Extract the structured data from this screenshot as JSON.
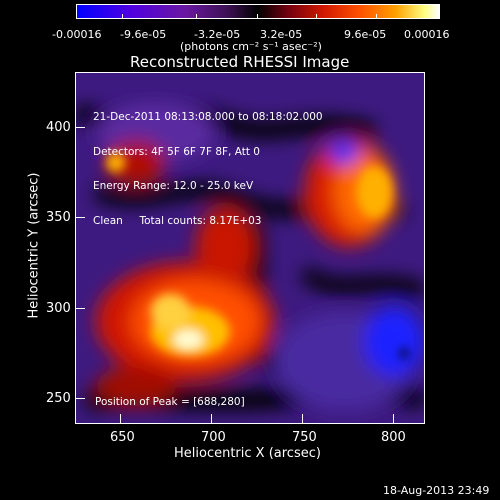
{
  "colorbar": {
    "tick_labels": [
      "-0.00016",
      "-9.6e-05",
      "-3.2e-05",
      "3.2e-05",
      "9.6e-05",
      "0.00016"
    ],
    "unit_label": "(photons cm⁻² s⁻¹ asec⁻²)"
  },
  "title": "Reconstructed RHESSI Image",
  "info": {
    "line1": "21-Dec-2011 08:13:08.000 to 08:18:02.000",
    "line2": "Detectors: 4F 5F 6F 7F 8F, Att 0",
    "line3": "Energy Range: 12.0 - 25.0 keV",
    "line4": "Clean     Total counts: 8.17E+03",
    "peak": "Position of Peak = [688,280]"
  },
  "axes": {
    "xlabel": "Heliocentric X (arcsec)",
    "ylabel": "Heliocentric Y (arcsec)",
    "x_ticks": [
      "650",
      "700",
      "750",
      "800"
    ],
    "y_ticks": [
      "250",
      "300",
      "350",
      "400"
    ],
    "x_range": [
      625,
      815
    ],
    "y_range": [
      237,
      427
    ]
  },
  "footer": {
    "timestamp": "18-Aug-2013 23:49"
  },
  "colors": {
    "low": "#1a00ff",
    "mid": "#000000",
    "high": "#ffffff",
    "hot": "#ff6a00"
  }
}
